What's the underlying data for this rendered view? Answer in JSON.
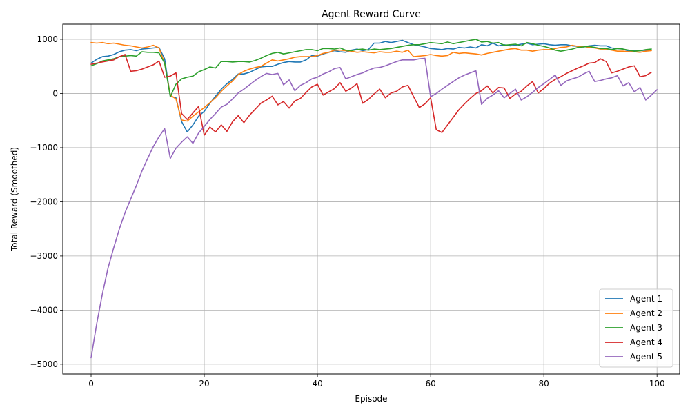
{
  "chart_data": {
    "type": "line",
    "title": "Agent Reward Curve",
    "xlabel": "Episode",
    "ylabel": "Total Reward (Smoothed)",
    "xlim": [
      -5,
      104
    ],
    "ylim": [
      -5180,
      1280
    ],
    "xticks": [
      0,
      20,
      40,
      60,
      80,
      100
    ],
    "yticks": [
      -5000,
      -4000,
      -3000,
      -2000,
      -1000,
      0,
      1000
    ],
    "ytick_labels": [
      "−5000",
      "−4000",
      "−3000",
      "−2000",
      "−1000",
      "0",
      "1000"
    ],
    "grid": true,
    "legend_position": "lower-right",
    "series": [
      {
        "name": "Agent 1",
        "color": "#1f77b4",
        "values": [
          560,
          630,
          680,
          690,
          720,
          770,
          800,
          810,
          790,
          820,
          830,
          840,
          850,
          640,
          -50,
          -80,
          -520,
          -710,
          -580,
          -420,
          -330,
          -180,
          -50,
          80,
          180,
          260,
          360,
          360,
          390,
          440,
          490,
          500,
          500,
          540,
          570,
          590,
          580,
          580,
          620,
          700,
          690,
          730,
          760,
          790,
          770,
          760,
          800,
          820,
          790,
          810,
          930,
          930,
          960,
          940,
          960,
          980,
          940,
          900,
          880,
          860,
          830,
          820,
          810,
          830,
          820,
          850,
          840,
          860,
          840,
          900,
          880,
          930,
          880,
          900,
          880,
          890,
          910,
          930,
          900,
          910,
          920,
          900,
          890,
          900,
          900,
          880,
          870,
          860,
          880,
          890,
          880,
          880,
          840,
          830,
          820,
          780,
          790,
          790,
          800,
          800
        ]
      },
      {
        "name": "Agent 2",
        "color": "#ff7f0e",
        "values": [
          940,
          930,
          940,
          920,
          930,
          910,
          890,
          880,
          860,
          840,
          860,
          890,
          840,
          560,
          -30,
          -100,
          -490,
          -510,
          -420,
          -340,
          -260,
          -170,
          -80,
          40,
          140,
          230,
          350,
          410,
          450,
          480,
          500,
          560,
          620,
          600,
          620,
          640,
          670,
          680,
          680,
          680,
          700,
          740,
          760,
          800,
          800,
          790,
          780,
          760,
          770,
          760,
          750,
          770,
          760,
          760,
          780,
          760,
          800,
          680,
          690,
          700,
          720,
          700,
          690,
          700,
          760,
          740,
          750,
          740,
          730,
          710,
          740,
          760,
          780,
          800,
          820,
          830,
          800,
          800,
          780,
          800,
          810,
          810,
          830,
          850,
          860,
          890,
          870,
          870,
          850,
          840,
          820,
          820,
          800,
          780,
          780,
          770,
          770,
          760,
          780,
          790
        ]
      },
      {
        "name": "Agent 3",
        "color": "#2ca02c",
        "values": [
          510,
          550,
          600,
          620,
          640,
          680,
          690,
          700,
          690,
          770,
          760,
          760,
          750,
          560,
          -60,
          170,
          270,
          300,
          320,
          400,
          440,
          490,
          470,
          590,
          590,
          580,
          590,
          590,
          580,
          610,
          650,
          700,
          740,
          760,
          730,
          750,
          770,
          790,
          810,
          810,
          790,
          830,
          830,
          820,
          840,
          800,
          790,
          810,
          820,
          800,
          820,
          810,
          820,
          830,
          850,
          870,
          890,
          900,
          900,
          920,
          940,
          930,
          920,
          950,
          920,
          940,
          960,
          980,
          1000,
          950,
          960,
          930,
          940,
          890,
          900,
          910,
          880,
          940,
          920,
          890,
          870,
          840,
          800,
          780,
          800,
          820,
          850,
          860,
          870,
          850,
          830,
          830,
          810,
          830,
          820,
          800,
          780,
          790,
          810,
          820
        ]
      },
      {
        "name": "Agent 4",
        "color": "#d62728",
        "values": [
          540,
          560,
          580,
          600,
          620,
          680,
          720,
          410,
          420,
          450,
          490,
          530,
          600,
          300,
          320,
          380,
          -370,
          -480,
          -360,
          -240,
          -770,
          -620,
          -710,
          -580,
          -700,
          -520,
          -410,
          -540,
          -400,
          -290,
          -180,
          -120,
          -50,
          -210,
          -150,
          -270,
          -140,
          -90,
          20,
          120,
          170,
          -30,
          30,
          90,
          200,
          40,
          100,
          180,
          -180,
          -110,
          -10,
          80,
          -80,
          10,
          40,
          120,
          150,
          -60,
          -260,
          -190,
          -80,
          -670,
          -720,
          -580,
          -440,
          -300,
          -190,
          -90,
          0,
          50,
          140,
          10,
          110,
          100,
          -90,
          -10,
          40,
          140,
          220,
          10,
          90,
          190,
          260,
          310,
          370,
          420,
          470,
          510,
          560,
          570,
          640,
          590,
          380,
          410,
          450,
          490,
          510,
          310,
          330,
          390
        ]
      },
      {
        "name": "Agent 5",
        "color": "#9467bd",
        "values": [
          -4880,
          -4250,
          -3700,
          -3220,
          -2850,
          -2500,
          -2200,
          -1950,
          -1700,
          -1430,
          -1200,
          -980,
          -800,
          -650,
          -1200,
          -1010,
          -900,
          -800,
          -920,
          -730,
          -610,
          -480,
          -370,
          -250,
          -200,
          -100,
          10,
          80,
          160,
          240,
          310,
          370,
          350,
          370,
          160,
          250,
          50,
          150,
          200,
          270,
          300,
          360,
          400,
          460,
          480,
          270,
          310,
          350,
          380,
          430,
          470,
          480,
          510,
          550,
          590,
          620,
          620,
          620,
          640,
          650,
          -60,
          0,
          80,
          150,
          220,
          290,
          340,
          380,
          420,
          -200,
          -90,
          -30,
          50,
          -80,
          0,
          80,
          -120,
          -60,
          20,
          110,
          180,
          260,
          340,
          150,
          230,
          270,
          300,
          360,
          410,
          220,
          240,
          270,
          290,
          330,
          140,
          200,
          30,
          110,
          -120,
          -30,
          70
        ]
      }
    ]
  }
}
